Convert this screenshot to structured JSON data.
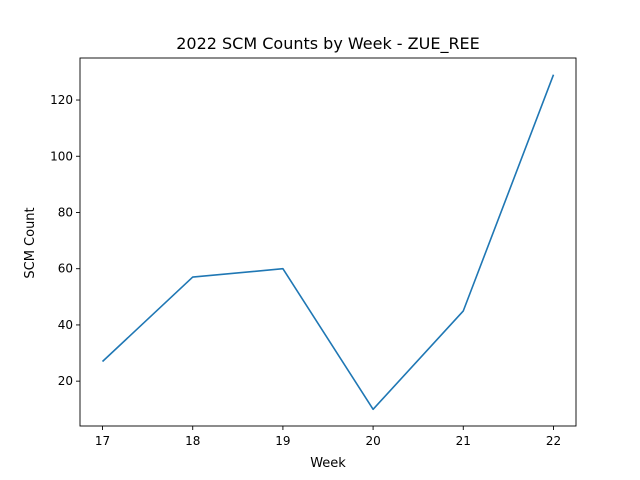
{
  "chart_data": {
    "type": "line",
    "title": "2022 SCM Counts by Week - ZUE_REE",
    "xlabel": "Week",
    "ylabel": "SCM Count",
    "x": [
      17,
      18,
      19,
      20,
      21,
      22
    ],
    "series": [
      {
        "values": [
          27,
          57,
          60,
          10,
          45,
          129
        ],
        "color": "#1f77b4"
      }
    ],
    "xticks": [
      "17",
      "18",
      "19",
      "20",
      "21",
      "22"
    ],
    "yticks": [
      "20",
      "40",
      "60",
      "80",
      "100",
      "120"
    ],
    "xlim": [
      16.75,
      22.25
    ],
    "ylim": [
      4.05,
      134.95
    ],
    "grid": false,
    "legend": false
  }
}
